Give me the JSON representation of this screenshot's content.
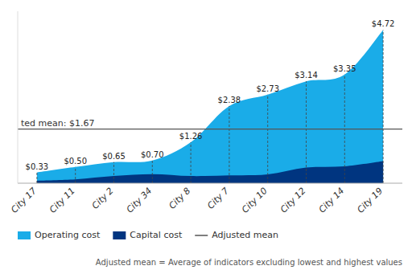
{
  "chart_data": {
    "type": "area",
    "categories": [
      "City 17",
      "City 11",
      "City 2",
      "City 34",
      "City 8",
      "City 7",
      "City 10",
      "City 12",
      "City 14",
      "City 19"
    ],
    "series": [
      {
        "name": "Operating cost",
        "color": "#1AACE8",
        "values": [
          0.33,
          0.5,
          0.65,
          0.7,
          1.26,
          2.38,
          2.73,
          3.14,
          3.35,
          4.72
        ],
        "value_labels": [
          "$0.33",
          "$0.50",
          "$0.65",
          "$0.70",
          "$1.26",
          "$2.38",
          "$2.73",
          "$3.14",
          "$3.35",
          "$4.72"
        ]
      },
      {
        "name": "Capital cost",
        "color": "#003580",
        "values": [
          0.08,
          0.12,
          0.22,
          0.28,
          0.22,
          0.24,
          0.27,
          0.48,
          0.52,
          0.68
        ]
      }
    ],
    "reference_line": {
      "name": "Adjusted mean",
      "value": 1.67,
      "label": "ted mean: $1.67",
      "color": "#555555"
    },
    "note": "Adjusted mean = Average of indicators excluding lowest and highest values",
    "ylim": [
      0,
      5.3
    ],
    "yticks": [],
    "tick_labels": "x",
    "data_labels": true,
    "stacked": false,
    "grid": false,
    "legend": "lower left"
  }
}
